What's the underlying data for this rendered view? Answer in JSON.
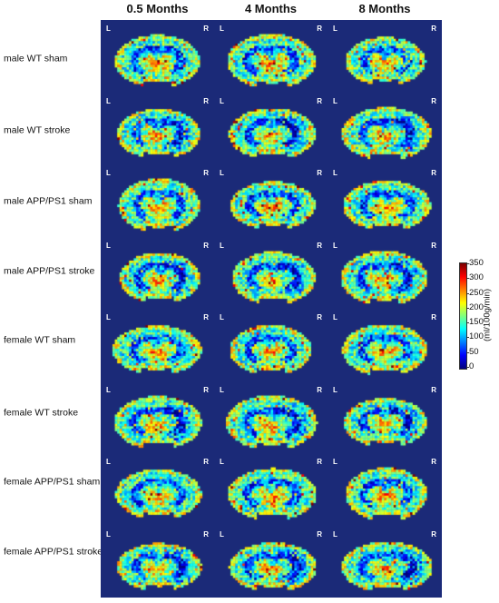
{
  "columns": [
    "0.5 Months",
    "4 Months",
    "8 Months"
  ],
  "rows": [
    "male WT sham",
    "male WT stroke",
    "male APP/PS1 sham",
    "male APP/PS1 stroke",
    "female WT sham",
    "female WT stroke",
    "female APP/PS1 sham",
    "female APP/PS1 stroke"
  ],
  "side_labels": {
    "left": "L",
    "right": "R"
  },
  "colorbar": {
    "label": "(ml/100g/min)",
    "ticks": [
      "0",
      "50",
      "100",
      "150",
      "200",
      "250",
      "300",
      "350"
    ],
    "min": 0,
    "max": 350,
    "colormap": "jet"
  },
  "colors": {
    "background": "#1b2a78"
  }
}
